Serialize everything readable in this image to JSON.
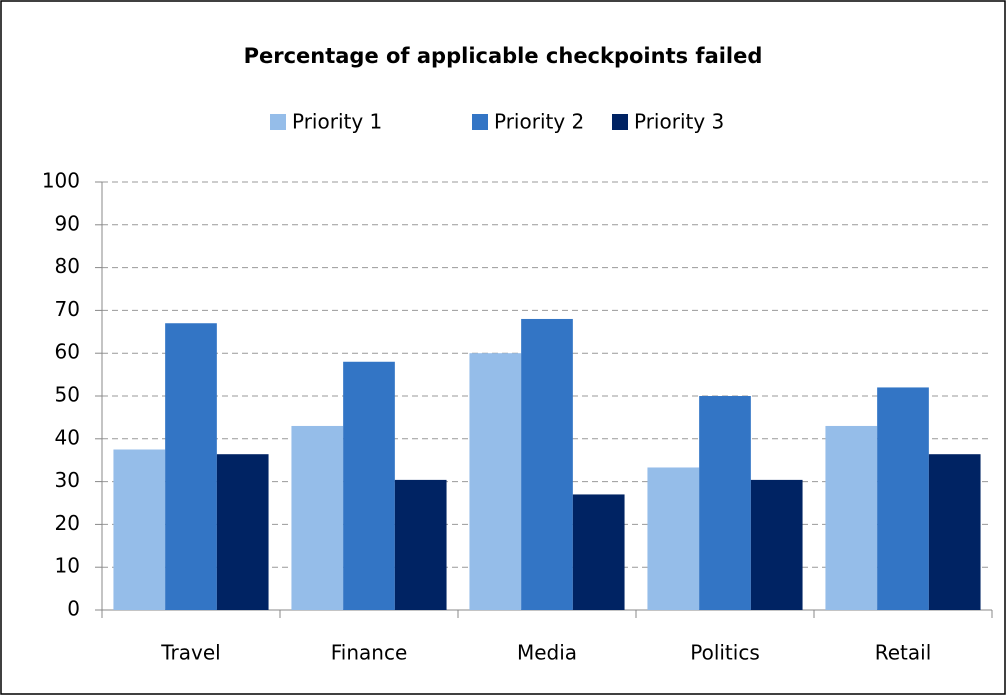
{
  "chart_data": {
    "type": "bar",
    "title": "Percentage of applicable checkpoints failed",
    "categories": [
      "Travel",
      "Finance",
      "Media",
      "Politics",
      "Retail"
    ],
    "series": [
      {
        "name": "Priority 1",
        "color": "#95bde9",
        "values": [
          37.5,
          43,
          60,
          33.3,
          43
        ]
      },
      {
        "name": "Priority 2",
        "color": "#3375c5",
        "values": [
          67,
          58,
          68,
          50,
          52
        ]
      },
      {
        "name": "Priority 3",
        "color": "#002363",
        "values": [
          36.4,
          30.4,
          27,
          30.4,
          36.4
        ]
      }
    ],
    "ylim": [
      0,
      100
    ],
    "yticks": [
      0,
      10,
      20,
      30,
      40,
      50,
      60,
      70,
      80,
      90,
      100
    ],
    "grid": true,
    "legend": "top"
  }
}
